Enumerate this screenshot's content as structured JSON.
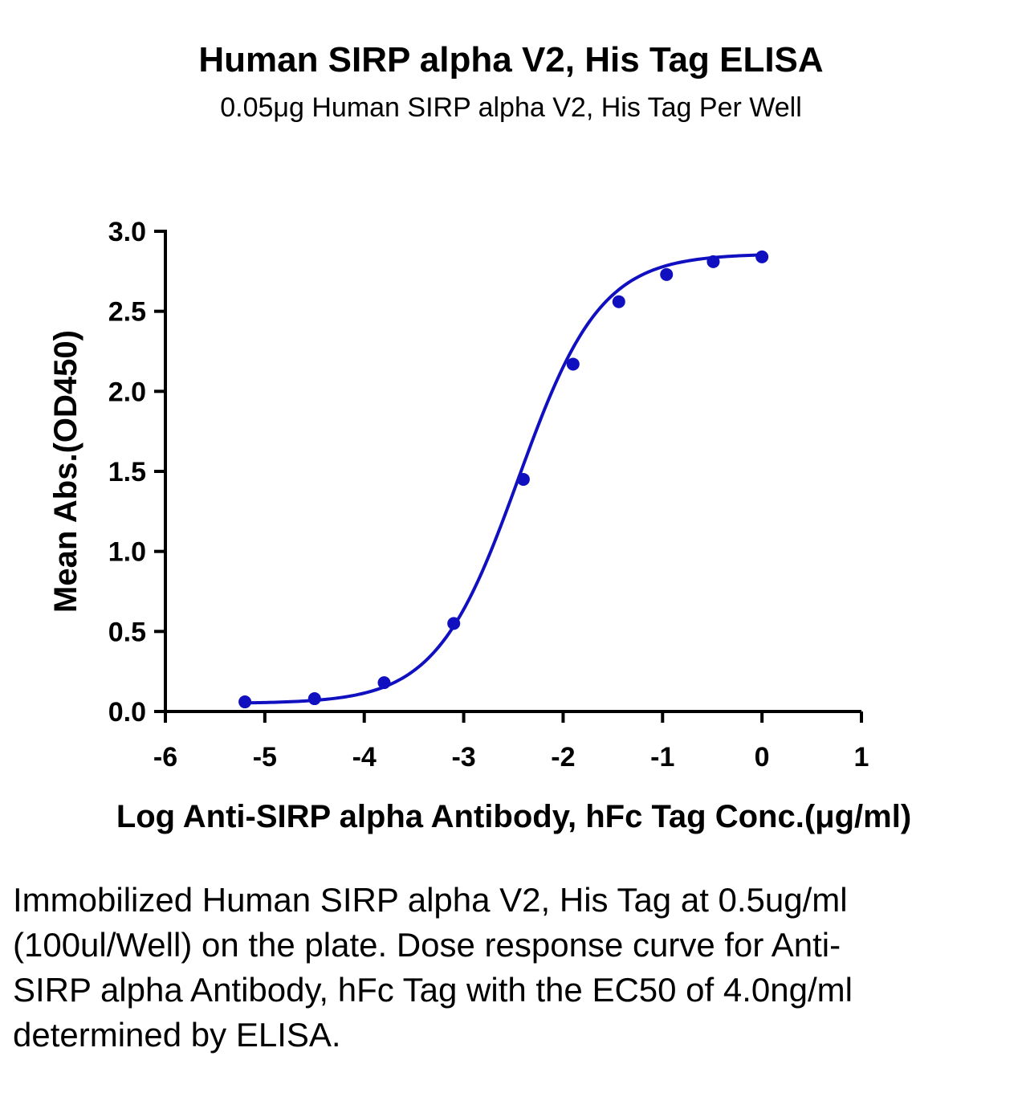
{
  "chart_data": {
    "type": "scatter",
    "title": "Human SIRP alpha V2, His Tag ELISA",
    "subtitle": "0.05μg Human SIRP alpha V2, His Tag Per Well",
    "xlabel": "Log Anti-SIRP alpha Antibody, hFc Tag Conc.(μg/ml)",
    "ylabel": "Mean Abs.(OD450)",
    "xlim": [
      -6,
      1
    ],
    "ylim": [
      0,
      3
    ],
    "x_ticks": [
      "-6",
      "-5",
      "-4",
      "-3",
      "-2",
      "-1",
      "0",
      "1"
    ],
    "y_ticks": [
      "0.0",
      "0.5",
      "1.0",
      "1.5",
      "2.0",
      "2.5",
      "3.0"
    ],
    "series": [
      {
        "x": [
          -5.2,
          -4.5,
          -3.8,
          -3.1,
          -2.4,
          -1.9,
          -1.44,
          -0.96,
          -0.49,
          0.0
        ],
        "y": [
          0.06,
          0.08,
          0.18,
          0.55,
          1.45,
          2.17,
          2.56,
          2.73,
          2.81,
          2.84
        ],
        "fit": "sigmoidal 4PL",
        "color": "#1010c0"
      }
    ],
    "grid": false,
    "legend": "none"
  },
  "caption": "Immobilized Human SIRP alpha V2, His Tag at 0.5ug/ml (100ul/Well) on the plate. Dose response curve for Anti-SIRP alpha Antibody, hFc Tag with the EC50 of 4.0ng/ml determined by ELISA."
}
